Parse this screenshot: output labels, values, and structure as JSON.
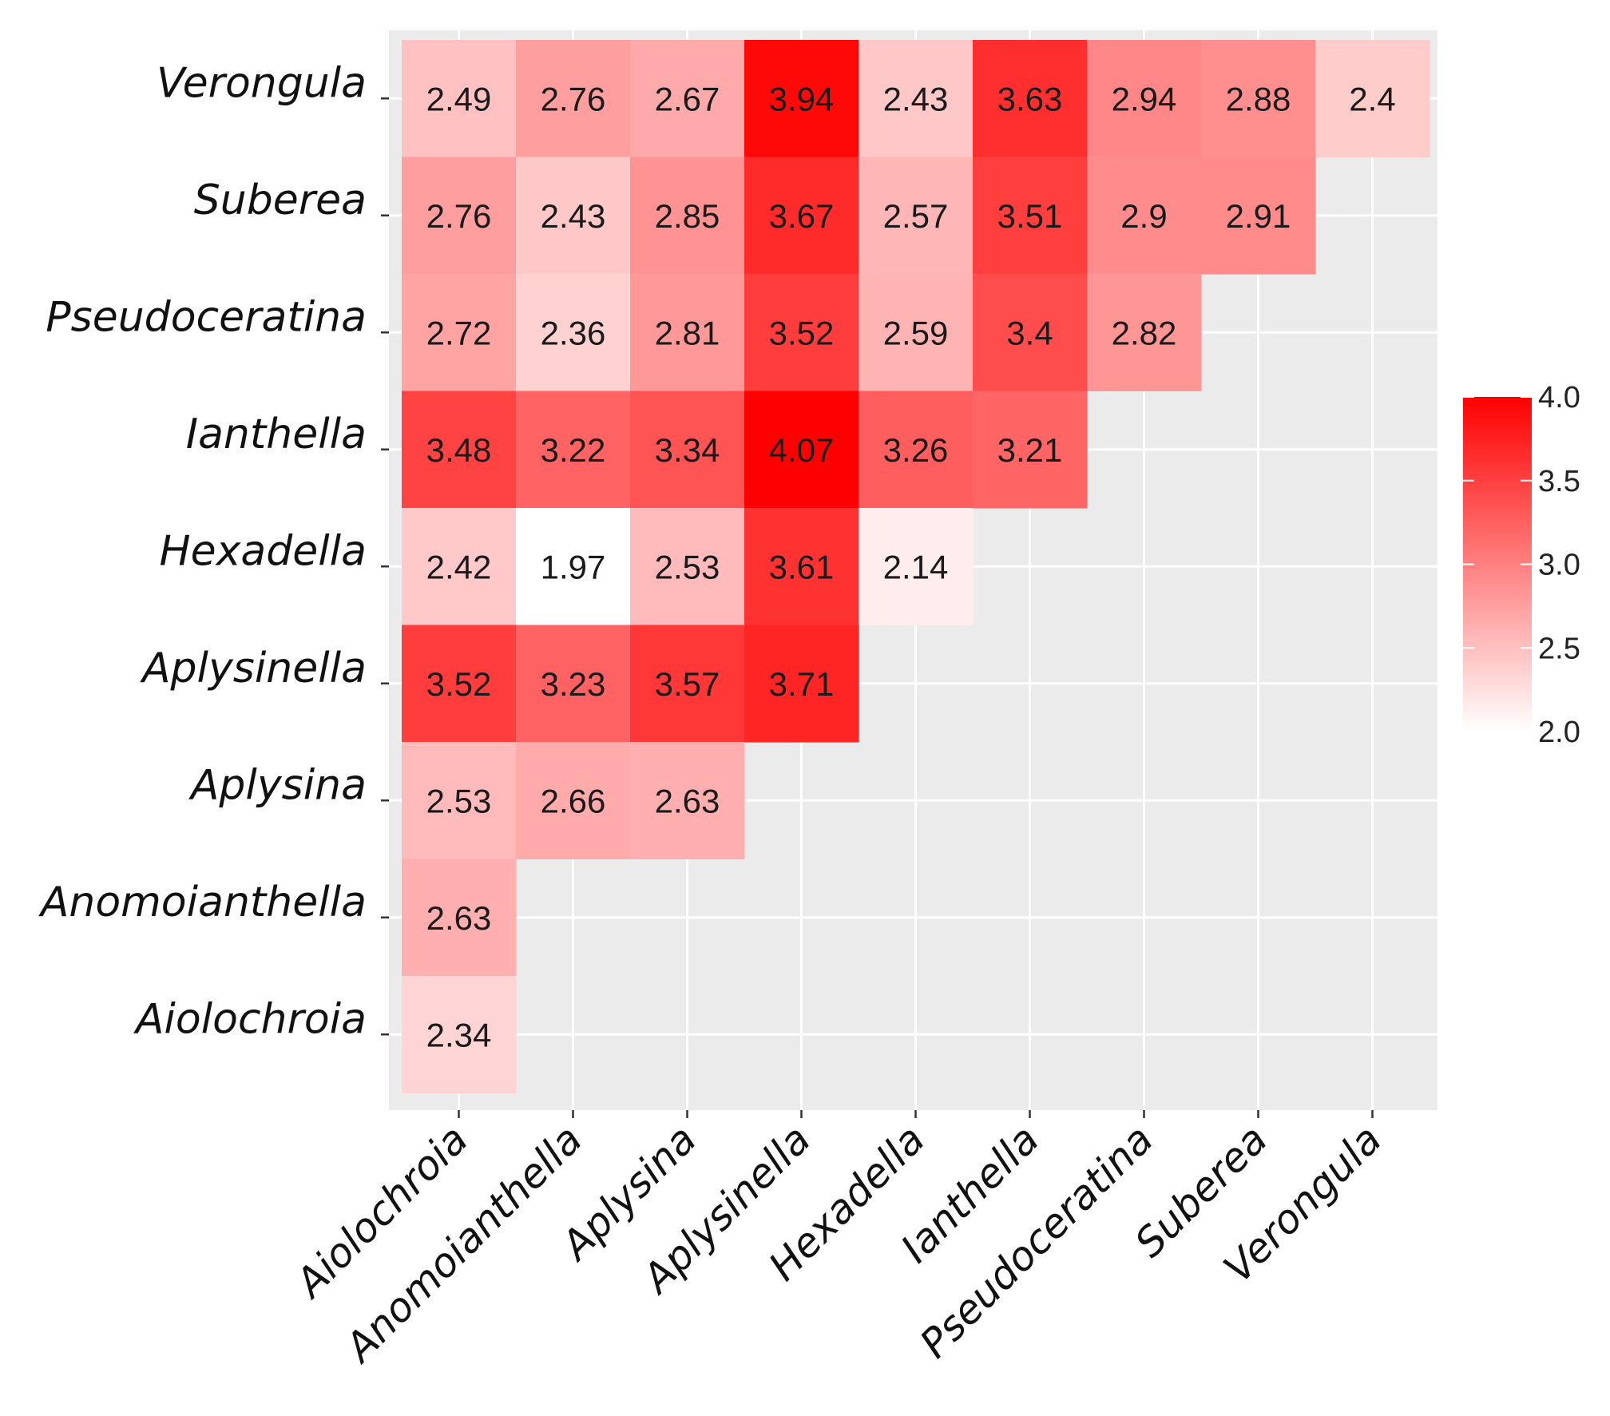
{
  "chart_data": {
    "type": "heatmap",
    "title": "",
    "xlabel": "",
    "ylabel": "",
    "x_categories": [
      "Aiolochroia",
      "Anomoianthella",
      "Aplysina",
      "Aplysinella",
      "Hexadella",
      "Ianthella",
      "Pseudoceratina",
      "Suberea",
      "Verongula"
    ],
    "y_categories": [
      "Verongula",
      "Suberea",
      "Pseudoceratina",
      "Ianthella",
      "Hexadella",
      "Aplysinella",
      "Aplysina",
      "Anomoianthella",
      "Aiolochroia"
    ],
    "rows": [
      [
        2.49,
        2.76,
        2.67,
        3.94,
        2.43,
        3.63,
        2.94,
        2.88,
        2.4
      ],
      [
        2.76,
        2.43,
        2.85,
        3.67,
        2.57,
        3.51,
        2.9,
        2.91
      ],
      [
        2.72,
        2.36,
        2.81,
        3.52,
        2.59,
        3.4,
        2.82
      ],
      [
        3.48,
        3.22,
        3.34,
        4.07,
        3.26,
        3.21
      ],
      [
        2.42,
        1.97,
        2.53,
        3.61,
        2.14
      ],
      [
        3.52,
        3.23,
        3.57,
        3.71
      ],
      [
        2.53,
        2.66,
        2.63
      ],
      [
        2.63
      ],
      [
        2.34
      ]
    ],
    "legend": {
      "min": 2.0,
      "max": 4.0,
      "ticks": [
        "2.0",
        "2.5",
        "3.0",
        "3.5",
        "4.0"
      ],
      "low_color": "#ffffff",
      "high_color": "#ff0000",
      "placement": "right"
    },
    "panel_color": "#ebebeb",
    "grid_color": "#ffffff"
  }
}
